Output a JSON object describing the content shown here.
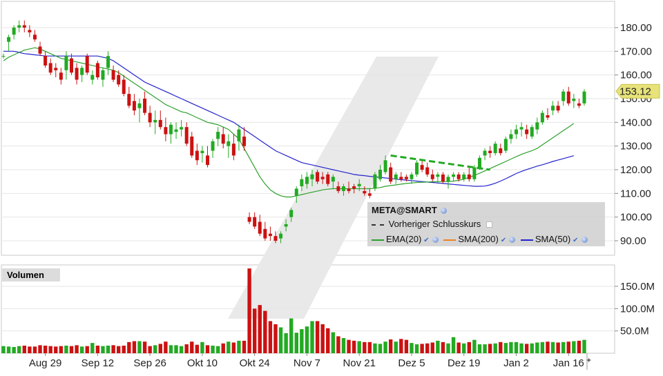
{
  "chart_data": {
    "type": "candlestick",
    "symbol": "META@SMART",
    "price_axis": {
      "ticks": [
        "180.00",
        "170.00",
        "160.00",
        "150.00",
        "140.00",
        "130.00",
        "120.00",
        "110.00",
        "100.00",
        "90.00"
      ],
      "range": [
        82,
        190
      ]
    },
    "volume_axis": {
      "label": "Volumen",
      "ticks": [
        "150.0M",
        "100.0M",
        "50.0M"
      ],
      "range": [
        0,
        190
      ]
    },
    "x_ticks": [
      "Aug 29",
      "Sep 12",
      "Sep 26",
      "Okt 10",
      "Okt 24",
      "Nov 7",
      "Nov 21",
      "Dez 5",
      "Dez 19",
      "Jan 2",
      "Jan 16"
    ],
    "last_price": "153.12",
    "legend": [
      {
        "name": "Vorheriger Schlusskurs",
        "color": "#333333",
        "style": "dashed"
      },
      {
        "name": "EMA(20)",
        "color": "#2ca02c"
      },
      {
        "name": "SMA(200)",
        "color": "#f08020"
      },
      {
        "name": "SMA(50)",
        "color": "#2222cc"
      }
    ],
    "ohlc": [
      [
        168,
        169,
        167,
        168
      ],
      [
        174,
        177,
        170,
        176
      ],
      [
        177,
        181,
        175,
        180
      ],
      [
        180,
        183,
        178,
        181
      ],
      [
        181,
        183,
        178,
        180
      ],
      [
        179,
        181,
        176,
        178
      ],
      [
        177,
        179,
        174,
        175
      ],
      [
        172,
        174,
        168,
        169
      ],
      [
        168,
        170,
        163,
        164
      ],
      [
        165,
        167,
        160,
        161
      ],
      [
        163,
        165,
        159,
        162
      ],
      [
        161,
        163,
        156,
        158
      ],
      [
        162,
        170,
        158,
        168
      ],
      [
        167,
        169,
        160,
        161
      ],
      [
        163,
        165,
        156,
        158
      ],
      [
        160,
        164,
        157,
        163
      ],
      [
        168,
        169,
        160,
        161
      ],
      [
        158,
        162,
        156,
        160
      ],
      [
        165,
        166,
        158,
        159
      ],
      [
        158,
        163,
        155,
        162
      ],
      [
        163,
        170,
        160,
        168
      ],
      [
        162,
        164,
        157,
        158
      ],
      [
        160,
        162,
        155,
        156
      ],
      [
        158,
        160,
        151,
        152
      ],
      [
        152,
        155,
        146,
        147
      ],
      [
        149,
        152,
        143,
        145
      ],
      [
        146,
        150,
        140,
        148
      ],
      [
        150,
        153,
        143,
        144
      ],
      [
        144,
        147,
        138,
        140
      ],
      [
        140,
        145,
        135,
        141
      ],
      [
        141,
        145,
        137,
        138
      ],
      [
        138,
        142,
        132,
        135
      ],
      [
        135,
        140,
        131,
        139
      ],
      [
        136,
        140,
        133,
        137
      ],
      [
        137,
        141,
        134,
        138
      ],
      [
        138,
        140,
        130,
        131
      ],
      [
        134,
        136,
        125,
        126
      ],
      [
        128,
        131,
        122,
        124
      ],
      [
        127,
        130,
        123,
        128
      ],
      [
        126,
        130,
        121,
        122
      ],
      [
        128,
        133,
        125,
        132
      ],
      [
        133,
        138,
        130,
        136
      ],
      [
        135,
        138,
        129,
        131
      ],
      [
        130,
        135,
        125,
        132
      ],
      [
        131,
        135,
        124,
        126
      ],
      [
        132,
        139,
        128,
        137
      ],
      [
        134,
        138,
        128,
        130
      ],
      [
        100,
        102,
        97,
        98
      ],
      [
        100,
        102,
        95,
        96
      ],
      [
        98,
        101,
        92,
        93
      ],
      [
        95,
        98,
        90,
        91
      ],
      [
        93,
        96,
        90,
        92
      ],
      [
        92,
        94,
        89,
        90
      ],
      [
        91,
        94,
        89,
        93
      ],
      [
        96,
        99,
        94,
        97
      ],
      [
        100,
        104,
        98,
        103
      ],
      [
        109,
        113,
        106,
        112
      ],
      [
        113,
        118,
        111,
        116
      ],
      [
        114,
        119,
        112,
        117
      ],
      [
        116,
        120,
        113,
        118
      ],
      [
        119,
        120,
        114,
        115
      ],
      [
        117,
        119,
        114,
        116
      ],
      [
        118,
        119,
        113,
        114
      ],
      [
        115,
        118,
        112,
        117
      ],
      [
        113,
        115,
        110,
        111
      ],
      [
        111,
        114,
        109,
        113
      ],
      [
        112,
        115,
        110,
        111
      ],
      [
        113,
        114,
        110,
        112
      ],
      [
        113,
        116,
        111,
        114
      ],
      [
        111,
        113,
        109,
        110
      ],
      [
        110,
        112,
        108,
        109
      ],
      [
        112,
        119,
        111,
        118
      ],
      [
        116,
        122,
        115,
        120
      ],
      [
        119,
        126,
        118,
        124
      ],
      [
        121,
        123,
        114,
        115
      ],
      [
        116,
        119,
        114,
        118
      ],
      [
        117,
        119,
        115,
        116
      ],
      [
        117,
        118,
        115,
        116
      ],
      [
        116,
        119,
        114,
        118
      ],
      [
        118,
        124,
        117,
        123
      ],
      [
        122,
        124,
        119,
        120
      ],
      [
        121,
        123,
        117,
        118
      ],
      [
        118,
        120,
        115,
        116
      ],
      [
        117,
        119,
        114,
        118
      ],
      [
        118,
        119,
        114,
        115
      ],
      [
        115,
        118,
        112,
        117
      ],
      [
        117,
        119,
        115,
        118
      ],
      [
        118,
        119,
        115,
        116
      ],
      [
        116,
        119,
        115,
        118
      ],
      [
        118,
        121,
        115,
        116
      ],
      [
        116,
        122,
        115,
        121
      ],
      [
        121,
        126,
        120,
        125
      ],
      [
        126,
        129,
        124,
        128
      ],
      [
        128,
        130,
        125,
        127
      ],
      [
        127,
        132,
        126,
        131
      ],
      [
        129,
        131,
        126,
        127
      ],
      [
        128,
        134,
        127,
        133
      ],
      [
        133,
        137,
        131,
        135
      ],
      [
        135,
        139,
        133,
        137
      ],
      [
        137,
        140,
        134,
        138
      ],
      [
        137,
        139,
        133,
        135
      ],
      [
        134,
        139,
        133,
        138
      ],
      [
        137,
        142,
        135,
        140
      ],
      [
        140,
        145,
        139,
        144
      ],
      [
        143,
        146,
        141,
        142
      ],
      [
        145,
        149,
        143,
        147
      ],
      [
        147,
        149,
        144,
        145
      ],
      [
        149,
        154,
        147,
        153
      ],
      [
        153,
        155,
        147,
        148
      ],
      [
        149,
        152,
        146,
        150
      ],
      [
        148,
        150,
        146,
        147
      ],
      [
        148,
        154,
        147,
        153
      ]
    ],
    "volumes": [
      16,
      15,
      14,
      16,
      17,
      15,
      15,
      18,
      17,
      16,
      15,
      16,
      17,
      16,
      18,
      15,
      16,
      23,
      17,
      16,
      17,
      18,
      16,
      17,
      25,
      27,
      27,
      26,
      16,
      18,
      21,
      26,
      18,
      18,
      16,
      20,
      26,
      19,
      25,
      18,
      17,
      16,
      22,
      26,
      24,
      28,
      28,
      190,
      100,
      108,
      95,
      72,
      65,
      58,
      45,
      78,
      46,
      54,
      60,
      72,
      72,
      65,
      56,
      47,
      38,
      34,
      30,
      28,
      27,
      25,
      25,
      22,
      21,
      26,
      31,
      26,
      32,
      30,
      23,
      20,
      21,
      22,
      24,
      28,
      25,
      22,
      36,
      24,
      22,
      25,
      30,
      20,
      20,
      21,
      22,
      25,
      23,
      25,
      25,
      22,
      21,
      22,
      24,
      25,
      26,
      25,
      24,
      25,
      26,
      27,
      28,
      30
    ],
    "sma50": [
      170,
      170,
      170,
      169.5,
      169,
      168.8,
      168.5,
      168.3,
      168,
      168,
      168,
      168,
      168,
      168,
      168,
      168,
      168,
      168,
      168,
      167.5,
      167,
      166,
      164.5,
      163,
      161.5,
      160,
      158.5,
      157,
      156,
      155,
      154,
      153,
      152,
      151,
      150,
      149,
      148,
      147,
      146,
      145,
      144,
      143,
      142,
      141,
      140,
      138.5,
      137,
      135.5,
      134,
      132.5,
      131,
      129.5,
      128,
      127,
      126,
      125,
      124,
      123,
      122.5,
      122,
      121.5,
      121,
      120.5,
      120,
      119.5,
      119,
      118.5,
      118,
      117.7,
      117.5,
      117.2,
      117,
      116.8,
      116.5,
      116.3,
      116,
      115.8,
      115.6,
      115.4,
      115.2,
      115,
      114.8,
      114.6,
      114.4,
      114.2,
      114,
      113.8,
      113.6,
      113.4,
      113.2,
      113,
      113,
      113.1,
      113.6,
      114.3,
      115.2,
      116.2,
      117.3,
      118.4,
      119.3,
      120.1,
      120.8,
      121.5,
      122.1,
      122.8,
      123.5,
      124.1,
      124.7,
      125.3,
      125.9
    ],
    "ema20": [
      166,
      167.5,
      168.5,
      169.5,
      170.5,
      171,
      171.5,
      171,
      170,
      169,
      168,
      167,
      166.5,
      166,
      165.5,
      165,
      164.5,
      164,
      163.5,
      163,
      162.5,
      162,
      161,
      159.5,
      158,
      156.5,
      155,
      153.5,
      152,
      150.5,
      149,
      147.5,
      146.5,
      145.5,
      144.5,
      144,
      143,
      142,
      141,
      140,
      139.5,
      139,
      138,
      137,
      135,
      133,
      129,
      125,
      121,
      117,
      114,
      111.5,
      110,
      109,
      108.5,
      108.5,
      109,
      109.5,
      110,
      110.5,
      111,
      111.5,
      111.8,
      112,
      112,
      112,
      112,
      112,
      112,
      112,
      112,
      112.2,
      112.5,
      113,
      113.3,
      113.6,
      113.9,
      114.2,
      114.4,
      114.6,
      114.7,
      114.8,
      114.9,
      115,
      115,
      115,
      115.2,
      115.5,
      116,
      116.8,
      117.6,
      118.5,
      119.5,
      120.5,
      121.5,
      122.5,
      123.5,
      124.5,
      125.5,
      126.5,
      127.3,
      128,
      129,
      130.5,
      132,
      133.5,
      135,
      136.5,
      138,
      139.5
    ],
    "prev_close_line": {
      "from_index": 74,
      "to_index": 93,
      "from_value": 126,
      "to_value": 120
    }
  }
}
